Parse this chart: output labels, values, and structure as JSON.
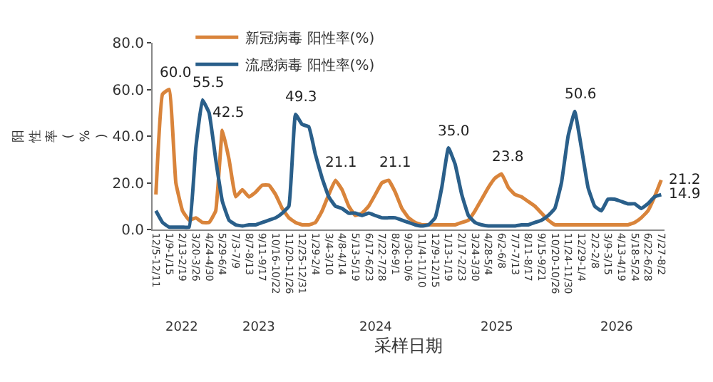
{
  "chart_data": {
    "type": "line",
    "xlabel": "采样日期",
    "ylabel": "阳性率(%)",
    "categories": [
      "12/5-12/11",
      null,
      "1/9-1/15",
      null,
      "2/13-2/19",
      null,
      "3/20-3/26",
      null,
      "4/24-4/30",
      null,
      "5/29-6/4",
      null,
      "7/3-7/9",
      null,
      "8/7-8/13",
      null,
      "9/11-9/17",
      null,
      "10/16-10/22",
      null,
      "11/20-11/26",
      null,
      "12/25-12/31",
      null,
      "1/29-2/4",
      null,
      "3/4-3/10",
      null,
      "4/8-4/14",
      null,
      "5/13-5/19",
      null,
      "6/17-6/23",
      null,
      "7/22-7/28",
      null,
      "8/26-9/1",
      null,
      "9/30-10/6",
      null,
      "11/4-11/10",
      null,
      "12/9-12/15",
      null,
      "1/13-1/19",
      null,
      "2/17-2/23",
      null,
      "3/24-3/30",
      null,
      "4/28-5/4",
      null,
      "6/2-6/8",
      null,
      "7/7-7/13",
      null,
      "8/11-8/17",
      null,
      "9/15-9/21",
      null,
      "10/20-10/26",
      null,
      "11/24-11/30",
      null,
      "12/29-1/4",
      null,
      "2/2-2/8",
      null,
      "3/9-3/15",
      null,
      "4/13-4/19",
      null,
      "5/18-5/24",
      null,
      "6/22-6/28",
      null,
      "7/27-8/2"
    ],
    "series": [
      {
        "name": "新冠病毒 阳性率(%)",
        "color": "#d9843b",
        "values": [
          15,
          58,
          60.0,
          20,
          8,
          4,
          5,
          3,
          3,
          8,
          42.5,
          30,
          14,
          17,
          14,
          16,
          19,
          19,
          15,
          9,
          5,
          3,
          2,
          2,
          3,
          8,
          15,
          21.1,
          17,
          10,
          6,
          7,
          10,
          15,
          20,
          21.1,
          16,
          9,
          5,
          3,
          2,
          2,
          2,
          2,
          2,
          2,
          3,
          4,
          8,
          13,
          18,
          22,
          23.8,
          18,
          15,
          14,
          12,
          10,
          7,
          4,
          2,
          2,
          2,
          2,
          2,
          2,
          2,
          2,
          2,
          2,
          2,
          2,
          3,
          5,
          8,
          14,
          21.2
        ],
        "value_labels": [
          null,
          null,
          "60.0",
          null,
          null,
          null,
          null,
          null,
          null,
          null,
          "42.5",
          null,
          null,
          null,
          null,
          null,
          null,
          null,
          null,
          null,
          null,
          null,
          null,
          null,
          null,
          null,
          null,
          "21.1",
          null,
          null,
          null,
          null,
          null,
          null,
          null,
          "21.1",
          null,
          null,
          null,
          null,
          null,
          null,
          null,
          null,
          null,
          null,
          null,
          null,
          null,
          null,
          null,
          null,
          "23.8",
          null,
          null,
          null,
          null,
          null,
          null,
          null,
          null,
          null,
          null,
          null,
          null,
          null,
          null,
          null,
          null,
          null,
          null,
          null,
          null,
          null,
          null,
          null,
          "21.2"
        ]
      },
      {
        "name": "流感病毒 阳性率(%)",
        "color": "#2a5f8a",
        "values": [
          8,
          3,
          1,
          1,
          1,
          1,
          35,
          55.5,
          50,
          30,
          12,
          4,
          2,
          1.5,
          2,
          2,
          3,
          4,
          5,
          7,
          10,
          49.3,
          45,
          44,
          32,
          22,
          14,
          10,
          9,
          7,
          7,
          6,
          7,
          6,
          5,
          5,
          5,
          4,
          3,
          2,
          1.5,
          2,
          5,
          18,
          35.0,
          28,
          15,
          6,
          3,
          2,
          1.5,
          1.5,
          1.5,
          1.5,
          1.5,
          2,
          2,
          3,
          4,
          6,
          9,
          20,
          40,
          50.6,
          35,
          18,
          10,
          8,
          13,
          13,
          12,
          11,
          11,
          9,
          11,
          14,
          14.9
        ],
        "value_labels": [
          null,
          null,
          null,
          null,
          null,
          null,
          null,
          "55.5",
          null,
          null,
          null,
          null,
          null,
          null,
          null,
          null,
          null,
          null,
          null,
          null,
          null,
          "49.3",
          null,
          null,
          null,
          null,
          null,
          null,
          null,
          null,
          null,
          null,
          null,
          null,
          null,
          null,
          null,
          null,
          null,
          null,
          null,
          null,
          null,
          null,
          "35.0",
          null,
          null,
          null,
          null,
          null,
          null,
          null,
          null,
          null,
          null,
          null,
          null,
          null,
          null,
          null,
          null,
          null,
          null,
          "50.6",
          null,
          null,
          null,
          null,
          null,
          null,
          null,
          null,
          null,
          null,
          null,
          null,
          "14.9"
        ]
      }
    ],
    "ylim": [
      0,
      80
    ],
    "yticks": [
      {
        "value": 0,
        "label": "0.0"
      },
      {
        "value": 20,
        "label": "20.0"
      },
      {
        "value": 40,
        "label": "40.0"
      },
      {
        "value": 60,
        "label": "60.0"
      },
      {
        "value": 80,
        "label": "80.0"
      }
    ],
    "annotations": [
      "2022",
      "2023",
      "2024",
      "2025",
      "2026"
    ],
    "legend": "top",
    "marker": "none",
    "line_style": "solid"
  }
}
